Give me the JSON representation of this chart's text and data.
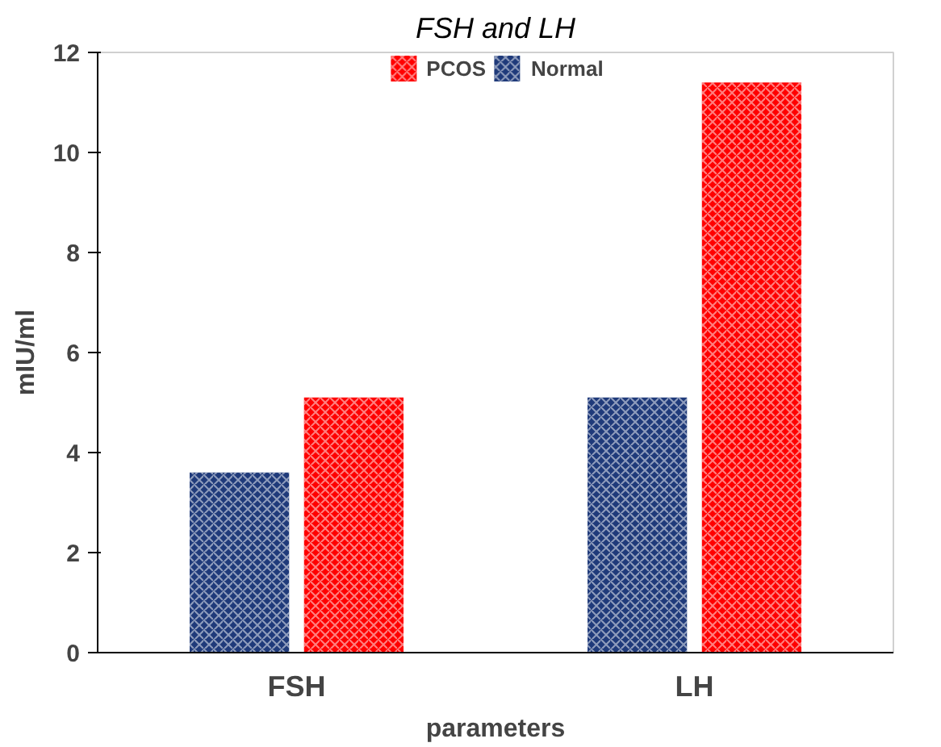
{
  "chart_data": {
    "type": "bar",
    "title": "FSH and LH",
    "xlabel": "parameters",
    "ylabel": "mIU/ml",
    "categories": [
      "FSH",
      "LH"
    ],
    "series": [
      {
        "name": "Normal",
        "color": "#1f3a7a",
        "values": [
          3.6,
          5.1
        ]
      },
      {
        "name": "PCOS",
        "color": "#ff0000",
        "values": [
          5.1,
          11.4
        ]
      }
    ],
    "ylim": [
      0,
      12
    ],
    "yticks": [
      0,
      2,
      4,
      6,
      8,
      10,
      12
    ],
    "grid": false,
    "legend": "top"
  }
}
